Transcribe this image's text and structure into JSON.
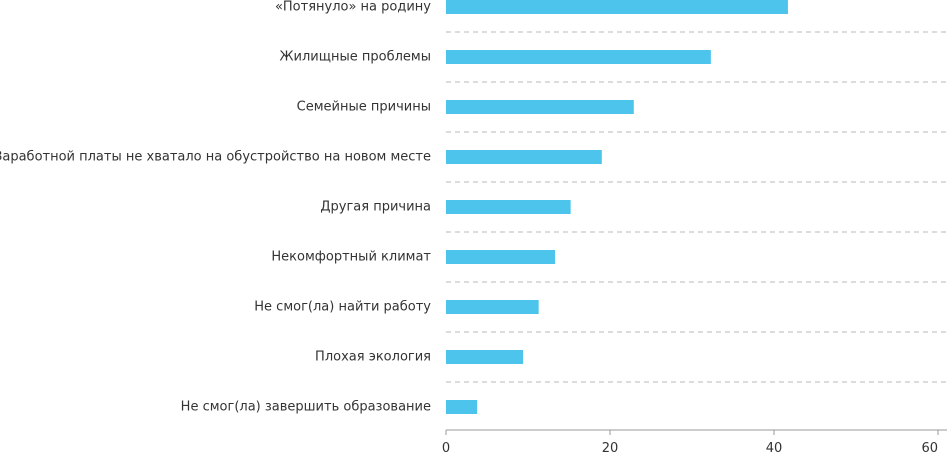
{
  "chart_data": {
    "type": "bar",
    "orientation": "horizontal",
    "categories": [
      "«Потянуло» на родину",
      "Жилищные проблемы",
      "Семейные причины",
      "Заработной платы не хватало на обустройство на новом месте",
      "Другая причина",
      "Некомфортный климат",
      "Не смог(ла) найти работу",
      "Плохая экология",
      "Не смог(ла) завершить образование"
    ],
    "values": [
      41.7,
      32.3,
      22.9,
      19.0,
      15.2,
      13.3,
      11.3,
      9.4,
      3.8
    ],
    "xlim": [
      0,
      60
    ],
    "xticks": [
      "0",
      "20",
      "40",
      "60"
    ],
    "bar_color": "#4dc4ec",
    "grid": false,
    "legend": "none"
  }
}
